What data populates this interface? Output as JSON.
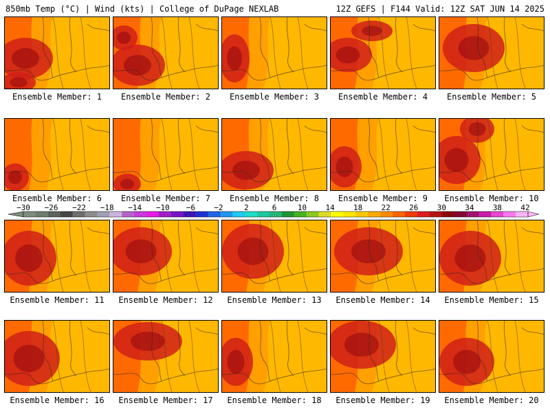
{
  "header": {
    "left": "850mb Temp (°C) | Wind (kts) | College of DuPage NEXLAB",
    "right": "12Z GEFS | F144 Valid: 12Z SAT JUN 14 2025"
  },
  "panels": [
    {
      "label": "Ensemble Member: 1"
    },
    {
      "label": "Ensemble Member: 2"
    },
    {
      "label": "Ensemble Member: 3"
    },
    {
      "label": "Ensemble Member: 4"
    },
    {
      "label": "Ensemble Member: 5"
    },
    {
      "label": "Ensemble Member: 6"
    },
    {
      "label": "Ensemble Member: 7"
    },
    {
      "label": "Ensemble Member: 8"
    },
    {
      "label": "Ensemble Member: 9"
    },
    {
      "label": "Ensemble Member: 10"
    },
    {
      "label": "Ensemble Member: 11"
    },
    {
      "label": "Ensemble Member: 12"
    },
    {
      "label": "Ensemble Member: 13"
    },
    {
      "label": "Ensemble Member: 14"
    },
    {
      "label": "Ensemble Member: 15"
    },
    {
      "label": "Ensemble Member: 16"
    },
    {
      "label": "Ensemble Member: 17"
    },
    {
      "label": "Ensemble Member: 18"
    },
    {
      "label": "Ensemble Member: 19"
    },
    {
      "label": "Ensemble Member: 20"
    }
  ],
  "colorbar": {
    "tick_labels": [
      "−30",
      "−26",
      "−22",
      "−18",
      "−14",
      "−10",
      "−6",
      "−2",
      "2",
      "6",
      "10",
      "14",
      "18",
      "22",
      "26",
      "30",
      "34",
      "38",
      "42"
    ],
    "colors": [
      "#7d8c7d",
      "#6e7d6e",
      "#5a645a",
      "#464646",
      "#6e6e6e",
      "#8c8c8c",
      "#a0a0b4",
      "#c8b4dc",
      "#b464c8",
      "#c83cdc",
      "#e61ee6",
      "#a01ec8",
      "#7814c8",
      "#4014b4",
      "#1e32d2",
      "#1e64e6",
      "#1e96f0",
      "#1ec8f0",
      "#1edcc8",
      "#1ec8a0",
      "#28b478",
      "#1e9632",
      "#46b41e",
      "#8cc81e",
      "#dcdc28",
      "#ffff00",
      "#ffe600",
      "#ffc800",
      "#ffaa00",
      "#ff8c00",
      "#ff6400",
      "#f03c00",
      "#dc1e1e",
      "#b41414",
      "#8c0a0a",
      "#820a32",
      "#a0146e",
      "#c81eaa",
      "#e646d2",
      "#ff78f0",
      "#ffb4f8"
    ],
    "map_colors": {
      "hot": "#ff6a00",
      "warm": "#ffa000",
      "mild": "#ffb800",
      "dark": "#d02018",
      "darker": "#a01010"
    }
  }
}
